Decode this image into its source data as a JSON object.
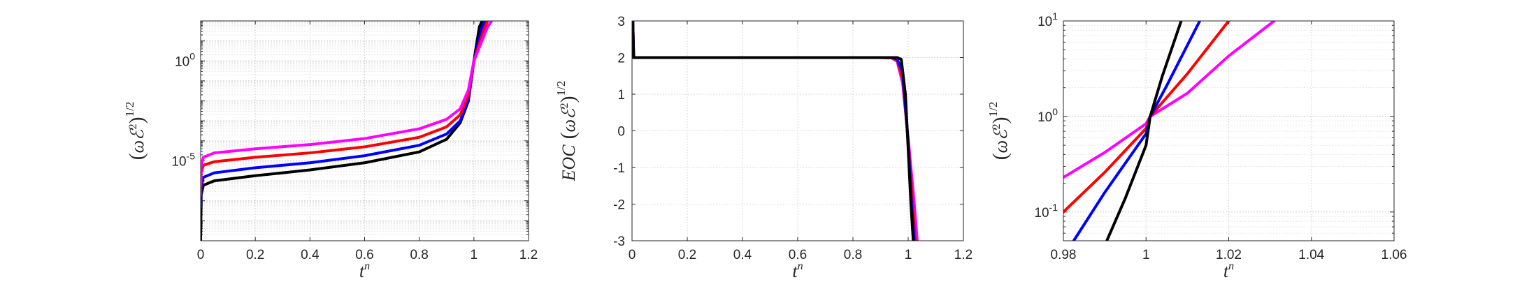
{
  "chart_data": [
    {
      "type": "line",
      "xlabel": "t^n",
      "ylabel": "(ωℰ²)^{1/2}",
      "ylabel_parts": {
        "open": "(",
        "omega": "ω",
        "E": "ℰ",
        "sq": "2",
        "close": ")",
        "exp": "1/2"
      },
      "xlim": [
        0,
        1.2
      ],
      "y_scale": "log",
      "ylim": [
        1e-09,
        100
      ],
      "xticks": [
        "0",
        "0.2",
        "0.4",
        "0.6",
        "0.8",
        "1",
        "1.2"
      ],
      "yticks": [
        {
          "base": "10",
          "exp": "0",
          "value": 1
        },
        {
          "base": "10",
          "exp": "-5",
          "value": 1e-05
        }
      ],
      "grid": true,
      "series": [
        {
          "color": "#000000",
          "x": [
            0,
            0.002,
            0.01,
            0.05,
            0.2,
            0.4,
            0.6,
            0.8,
            0.9,
            0.95,
            0.98,
            1.0,
            1.02,
            1.04
          ],
          "y": [
            1e-09,
            2e-07,
            6e-07,
            1e-06,
            1.8e-06,
            3.5e-06,
            8e-06,
            2.8e-05,
            0.00012,
            0.0008,
            0.01,
            1,
            50,
            200
          ]
        },
        {
          "color": "#0000ff",
          "x": [
            0,
            0.002,
            0.01,
            0.05,
            0.2,
            0.4,
            0.6,
            0.8,
            0.9,
            0.95,
            0.98,
            1.0,
            1.03,
            1.05
          ],
          "y": [
            5e-08,
            5e-07,
            1.5e-06,
            2.5e-06,
            4.5e-06,
            8e-06,
            1.8e-05,
            6e-05,
            0.00022,
            0.001,
            0.012,
            1,
            50,
            200
          ]
        },
        {
          "color": "#ff0000",
          "x": [
            0,
            0.002,
            0.01,
            0.05,
            0.2,
            0.4,
            0.6,
            0.8,
            0.9,
            0.95,
            0.98,
            1.0,
            1.04,
            1.06
          ],
          "y": [
            2e-07,
            2.5e-06,
            6e-06,
            9e-06,
            1.5e-05,
            2.5e-05,
            5e-05,
            0.00015,
            0.0005,
            0.002,
            0.02,
            1,
            50,
            200
          ]
        },
        {
          "color": "#ff00ff",
          "x": [
            0,
            0.002,
            0.01,
            0.05,
            0.2,
            0.4,
            0.6,
            0.8,
            0.9,
            0.95,
            0.98,
            1.0,
            1.05,
            1.08
          ],
          "y": [
            6e-07,
            6e-06,
            1.5e-05,
            2.5e-05,
            4e-05,
            6.5e-05,
            0.00013,
            0.0004,
            0.0012,
            0.004,
            0.035,
            1,
            50,
            200
          ]
        }
      ]
    },
    {
      "type": "line",
      "xlabel": "t^n",
      "ylabel": "EOC ((ωℰ²)^{1/2})",
      "ylabel_parts": {
        "prefix": "EOC",
        "open": "(",
        "omega": "ω",
        "E": "ℰ",
        "sq": "2",
        "close": ")",
        "exp": "1/2"
      },
      "xlim": [
        0,
        1.2
      ],
      "y_scale": "linear",
      "ylim": [
        -3,
        3
      ],
      "xticks": [
        "0",
        "0.2",
        "0.4",
        "0.6",
        "0.8",
        "1",
        "1.2"
      ],
      "yticks": [
        "3",
        "2",
        "1",
        "0",
        "-1",
        "-2",
        "-3"
      ],
      "grid": true,
      "series": [
        {
          "color": "#ff00ff",
          "x": [
            0,
            0.003,
            0.006,
            0.9,
            0.94,
            0.96,
            0.98,
            1.0,
            1.02,
            1.035
          ],
          "y": [
            2.98,
            2.98,
            2.0,
            2.0,
            1.99,
            1.9,
            1.3,
            -0.2,
            -1.8,
            -3.2
          ]
        },
        {
          "color": "#ff0000",
          "x": [
            0,
            0.003,
            0.006,
            0.9,
            0.94,
            0.96,
            0.98,
            1.0,
            1.015,
            1.028
          ],
          "y": [
            2.98,
            2.98,
            2.0,
            2.0,
            1.99,
            1.93,
            1.45,
            -0.3,
            -1.9,
            -3.2
          ]
        },
        {
          "color": "#0000ff",
          "x": [
            0,
            0.003,
            0.006,
            0.9,
            0.94,
            0.96,
            0.98,
            1.0,
            1.012,
            1.024
          ],
          "y": [
            2.98,
            2.98,
            2.0,
            2.0,
            2.0,
            1.96,
            1.6,
            -0.3,
            -2.0,
            -3.2
          ]
        },
        {
          "color": "#000000",
          "x": [
            0,
            0.003,
            0.006,
            0.9,
            0.94,
            0.96,
            0.975,
            0.99,
            1.0,
            1.01,
            1.02
          ],
          "y": [
            2.98,
            2.98,
            2.0,
            2.0,
            2.0,
            2.0,
            1.95,
            1.0,
            -0.5,
            -2.0,
            -3.2
          ]
        }
      ]
    },
    {
      "type": "line",
      "xlabel": "t^n",
      "ylabel": "(ωℰ²)^{1/2}",
      "ylabel_parts": {
        "open": "(",
        "omega": "ω",
        "E": "ℰ",
        "sq": "2",
        "close": ")",
        "exp": "1/2"
      },
      "xlim": [
        0.98,
        1.06
      ],
      "y_scale": "log",
      "ylim": [
        0.05,
        10
      ],
      "xticks": [
        "0.98",
        "1",
        "1.02",
        "1.04",
        "1.06"
      ],
      "yticks": [
        {
          "base": "10",
          "exp": "1",
          "value": 10
        },
        {
          "base": "10",
          "exp": "0",
          "value": 1
        },
        {
          "base": "10",
          "exp": "-1",
          "value": 0.1
        }
      ],
      "grid": true,
      "series": [
        {
          "color": "#ff00ff",
          "x": [
            0.98,
            0.99,
            1.0,
            1.001,
            1.01,
            1.02,
            1.031
          ],
          "y": [
            0.23,
            0.42,
            0.84,
            1.0,
            1.75,
            4.3,
            10
          ]
        },
        {
          "color": "#ff0000",
          "x": [
            0.98,
            0.99,
            1.0,
            1.001,
            1.01,
            1.02
          ],
          "y": [
            0.1,
            0.26,
            0.75,
            1.0,
            2.8,
            10
          ]
        },
        {
          "color": "#0000ff",
          "x": [
            0.9825,
            0.99,
            1.0,
            1.001,
            1.005,
            1.013
          ],
          "y": [
            0.05,
            0.16,
            0.66,
            1.0,
            2.1,
            10
          ]
        },
        {
          "color": "#000000",
          "x": [
            0.9905,
            0.995,
            1.0,
            1.001,
            1.004,
            1.0085
          ],
          "y": [
            0.05,
            0.14,
            0.5,
            1.0,
            2.7,
            10
          ]
        }
      ]
    }
  ]
}
